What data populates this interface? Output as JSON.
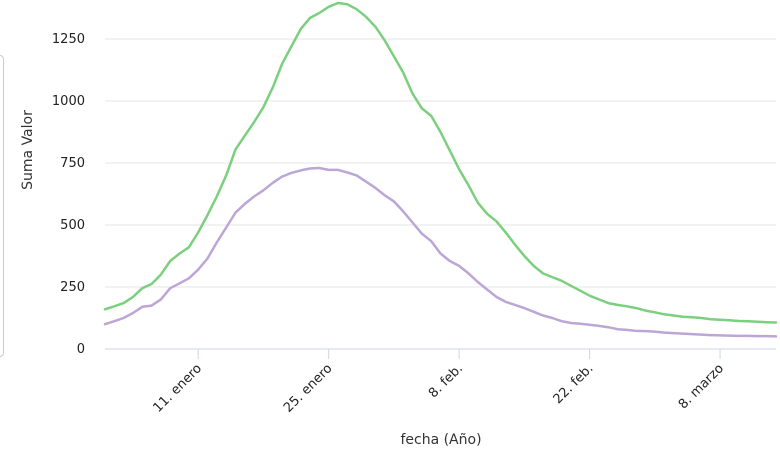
{
  "chart_data": {
    "type": "line",
    "title": "",
    "xlabel": "fecha (Año)",
    "ylabel": "Suma Valor",
    "ylim": [
      0,
      1375
    ],
    "y_ticks": [
      "0",
      "250",
      "500",
      "750",
      "1000",
      "1250"
    ],
    "x_ticks": [
      "11. enero",
      "25. enero",
      "8. feb.",
      "22. feb.",
      "8. marzo"
    ],
    "x_tick_dates": [
      "2021-01-11",
      "2021-01-25",
      "2021-02-08",
      "2021-02-22",
      "2021-03-08"
    ],
    "xlim": [
      "2021-01-01",
      "2021-03-14"
    ],
    "grid": true,
    "legend": "none",
    "series": [
      {
        "color": "#7ccf7e",
        "points": [
          [
            "2021-01-01",
            160
          ],
          [
            "2021-01-02",
            172
          ],
          [
            "2021-01-03",
            185
          ],
          [
            "2021-01-04",
            210
          ],
          [
            "2021-01-05",
            245
          ],
          [
            "2021-01-06",
            262
          ],
          [
            "2021-01-07",
            300
          ],
          [
            "2021-01-08",
            355
          ],
          [
            "2021-01-09",
            385
          ],
          [
            "2021-01-10",
            410
          ],
          [
            "2021-01-11",
            470
          ],
          [
            "2021-01-12",
            540
          ],
          [
            "2021-01-13",
            615
          ],
          [
            "2021-01-14",
            700
          ],
          [
            "2021-01-15",
            805
          ],
          [
            "2021-01-16",
            860
          ],
          [
            "2021-01-17",
            915
          ],
          [
            "2021-01-18",
            975
          ],
          [
            "2021-01-19",
            1055
          ],
          [
            "2021-01-20",
            1150
          ],
          [
            "2021-01-21",
            1220
          ],
          [
            "2021-01-22",
            1290
          ],
          [
            "2021-01-23",
            1335
          ],
          [
            "2021-01-24",
            1355
          ],
          [
            "2021-01-25",
            1380
          ],
          [
            "2021-01-26",
            1395
          ],
          [
            "2021-01-27",
            1390
          ],
          [
            "2021-01-28",
            1370
          ],
          [
            "2021-01-29",
            1340
          ],
          [
            "2021-01-30",
            1300
          ],
          [
            "2021-01-31",
            1245
          ],
          [
            "2021-02-01",
            1180
          ],
          [
            "2021-02-02",
            1115
          ],
          [
            "2021-02-03",
            1030
          ],
          [
            "2021-02-04",
            970
          ],
          [
            "2021-02-05",
            940
          ],
          [
            "2021-02-06",
            875
          ],
          [
            "2021-02-07",
            800
          ],
          [
            "2021-02-08",
            725
          ],
          [
            "2021-02-09",
            660
          ],
          [
            "2021-02-10",
            590
          ],
          [
            "2021-02-11",
            545
          ],
          [
            "2021-02-12",
            515
          ],
          [
            "2021-02-13",
            470
          ],
          [
            "2021-02-14",
            420
          ],
          [
            "2021-02-15",
            375
          ],
          [
            "2021-02-16",
            335
          ],
          [
            "2021-02-17",
            305
          ],
          [
            "2021-02-18",
            290
          ],
          [
            "2021-02-19",
            275
          ],
          [
            "2021-02-20",
            255
          ],
          [
            "2021-02-21",
            235
          ],
          [
            "2021-02-22",
            215
          ],
          [
            "2021-02-23",
            200
          ],
          [
            "2021-02-24",
            185
          ],
          [
            "2021-02-25",
            178
          ],
          [
            "2021-02-26",
            172
          ],
          [
            "2021-02-27",
            165
          ],
          [
            "2021-02-28",
            155
          ],
          [
            "2021-03-01",
            148
          ],
          [
            "2021-03-02",
            140
          ],
          [
            "2021-03-03",
            135
          ],
          [
            "2021-03-04",
            130
          ],
          [
            "2021-03-05",
            128
          ],
          [
            "2021-03-06",
            125
          ],
          [
            "2021-03-07",
            120
          ],
          [
            "2021-03-08",
            118
          ],
          [
            "2021-03-09",
            116
          ],
          [
            "2021-03-10",
            113
          ],
          [
            "2021-03-11",
            112
          ],
          [
            "2021-03-12",
            110
          ],
          [
            "2021-03-13",
            108
          ],
          [
            "2021-03-14",
            107
          ]
        ]
      },
      {
        "color": "#bca6d6",
        "points": [
          [
            "2021-01-01",
            100
          ],
          [
            "2021-01-02",
            112
          ],
          [
            "2021-01-03",
            125
          ],
          [
            "2021-01-04",
            145
          ],
          [
            "2021-01-05",
            170
          ],
          [
            "2021-01-06",
            175
          ],
          [
            "2021-01-07",
            200
          ],
          [
            "2021-01-08",
            245
          ],
          [
            "2021-01-09",
            265
          ],
          [
            "2021-01-10",
            285
          ],
          [
            "2021-01-11",
            320
          ],
          [
            "2021-01-12",
            365
          ],
          [
            "2021-01-13",
            430
          ],
          [
            "2021-01-14",
            490
          ],
          [
            "2021-01-15",
            550
          ],
          [
            "2021-01-16",
            585
          ],
          [
            "2021-01-17",
            615
          ],
          [
            "2021-01-18",
            640
          ],
          [
            "2021-01-19",
            670
          ],
          [
            "2021-01-20",
            695
          ],
          [
            "2021-01-21",
            710
          ],
          [
            "2021-01-22",
            720
          ],
          [
            "2021-01-23",
            728
          ],
          [
            "2021-01-24",
            730
          ],
          [
            "2021-01-25",
            722
          ],
          [
            "2021-01-26",
            722
          ],
          [
            "2021-01-27",
            712
          ],
          [
            "2021-01-28",
            700
          ],
          [
            "2021-01-29",
            675
          ],
          [
            "2021-01-30",
            650
          ],
          [
            "2021-01-31",
            620
          ],
          [
            "2021-02-01",
            595
          ],
          [
            "2021-02-02",
            555
          ],
          [
            "2021-02-03",
            510
          ],
          [
            "2021-02-04",
            465
          ],
          [
            "2021-02-05",
            435
          ],
          [
            "2021-02-06",
            385
          ],
          [
            "2021-02-07",
            355
          ],
          [
            "2021-02-08",
            335
          ],
          [
            "2021-02-09",
            305
          ],
          [
            "2021-02-10",
            270
          ],
          [
            "2021-02-11",
            240
          ],
          [
            "2021-02-12",
            210
          ],
          [
            "2021-02-13",
            190
          ],
          [
            "2021-02-14",
            178
          ],
          [
            "2021-02-15",
            165
          ],
          [
            "2021-02-16",
            150
          ],
          [
            "2021-02-17",
            135
          ],
          [
            "2021-02-18",
            125
          ],
          [
            "2021-02-19",
            112
          ],
          [
            "2021-02-20",
            105
          ],
          [
            "2021-02-21",
            102
          ],
          [
            "2021-02-22",
            98
          ],
          [
            "2021-02-23",
            93
          ],
          [
            "2021-02-24",
            88
          ],
          [
            "2021-02-25",
            80
          ],
          [
            "2021-02-26",
            77
          ],
          [
            "2021-02-27",
            73
          ],
          [
            "2021-02-28",
            72
          ],
          [
            "2021-03-01",
            70
          ],
          [
            "2021-03-02",
            66
          ],
          [
            "2021-03-03",
            64
          ],
          [
            "2021-03-04",
            62
          ],
          [
            "2021-03-05",
            60
          ],
          [
            "2021-03-06",
            58
          ],
          [
            "2021-03-07",
            56
          ],
          [
            "2021-03-08",
            55
          ],
          [
            "2021-03-09",
            54
          ],
          [
            "2021-03-10",
            53
          ],
          [
            "2021-03-11",
            53
          ],
          [
            "2021-03-12",
            52
          ],
          [
            "2021-03-13",
            52
          ],
          [
            "2021-03-14",
            51
          ]
        ]
      }
    ]
  }
}
